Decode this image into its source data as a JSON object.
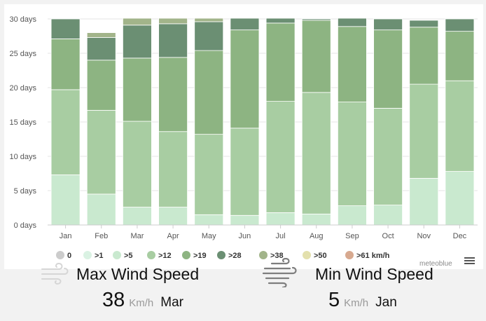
{
  "chart_data": {
    "type": "bar",
    "stacked": true,
    "categories": [
      "Jan",
      "Feb",
      "Mar",
      "Apr",
      "May",
      "Jun",
      "Jul",
      "Aug",
      "Sep",
      "Oct",
      "Nov",
      "Dec"
    ],
    "y_ticks": [
      "0 days",
      "5 days",
      "10 days",
      "15 days",
      "20 days",
      "25 days",
      "30 days"
    ],
    "ylim": [
      0,
      30
    ],
    "legend_position": "bottom",
    "series": [
      {
        "name": "0",
        "color": "#cccccc",
        "values": [
          0,
          0,
          0,
          0,
          0,
          0,
          0,
          0,
          0,
          0,
          0,
          0
        ]
      },
      {
        "name": ">1",
        "color": "#daf2e3",
        "values": [
          0,
          0,
          0,
          0,
          0,
          0,
          0,
          0,
          0,
          0,
          0,
          0
        ]
      },
      {
        "name": ">5",
        "color": "#c9e9cf",
        "values": [
          7.3,
          4.5,
          2.6,
          2.6,
          1.5,
          1.4,
          1.8,
          1.6,
          2.8,
          2.9,
          6.8,
          7.8
        ]
      },
      {
        "name": ">12",
        "color": "#a8cda2",
        "values": [
          12.4,
          12.2,
          12.5,
          11.0,
          11.7,
          12.7,
          16.2,
          17.7,
          15.1,
          14.1,
          13.7,
          13.2
        ]
      },
      {
        "name": ">19",
        "color": "#8db482",
        "values": [
          7.4,
          7.3,
          9.2,
          10.8,
          12.2,
          14.3,
          11.4,
          10.5,
          11.0,
          11.4,
          8.3,
          7.2
        ]
      },
      {
        "name": ">28",
        "color": "#6b8f73",
        "values": [
          2.9,
          3.3,
          4.8,
          4.9,
          4.2,
          1.7,
          0.7,
          0.2,
          1.2,
          1.6,
          1.0,
          1.8
        ]
      },
      {
        "name": ">38",
        "color": "#a2b48a",
        "values": [
          0,
          0.7,
          1.0,
          0.8,
          0.5,
          0,
          0,
          0,
          0,
          0,
          0,
          0
        ]
      },
      {
        "name": ">50",
        "color": "#e3e0ad",
        "values": [
          0,
          0,
          0,
          0,
          0,
          0,
          0,
          0,
          0,
          0,
          0,
          0
        ]
      },
      {
        "name": ">61 km/h",
        "color": "#d7a98f",
        "values": [
          0,
          0,
          0,
          0,
          0,
          0,
          0,
          0,
          0,
          0,
          0,
          0
        ]
      }
    ]
  },
  "branding": "meteoblue",
  "menu_icon": "hamburger-menu-icon",
  "stats": {
    "max": {
      "title": "Max Wind Speed",
      "value": "38",
      "unit": "Km/h",
      "month": "Mar",
      "icon": "wind-icon"
    },
    "min": {
      "title": "Min Wind Speed",
      "value": "5",
      "unit": "Km/h",
      "month": "Jan",
      "icon": "wind-icon"
    }
  }
}
